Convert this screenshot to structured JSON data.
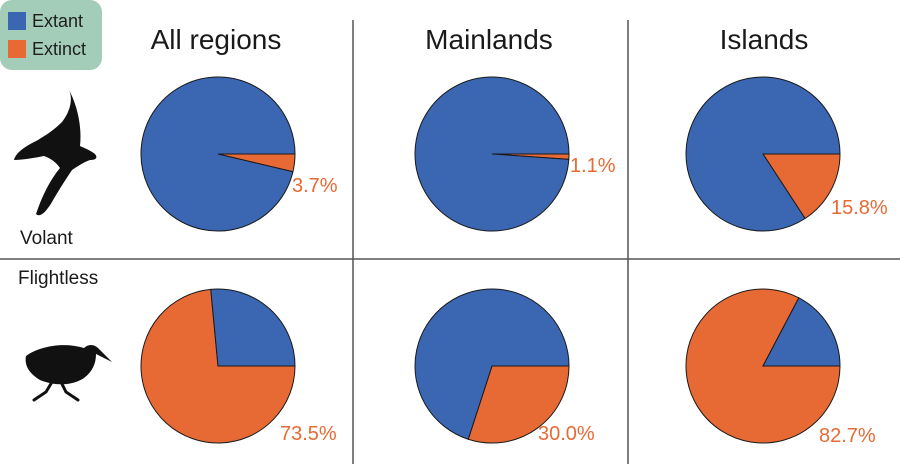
{
  "chart_data": {
    "type": "pie",
    "legend": [
      {
        "label": "Extant",
        "color": "#3a66b2"
      },
      {
        "label": "Extinct",
        "color": "#e76a35"
      }
    ],
    "column_titles": [
      "All regions",
      "Mainlands",
      "Islands"
    ],
    "row_labels": [
      "Volant",
      "Flightless"
    ],
    "pies": [
      {
        "row": "Volant",
        "column": "All regions",
        "extinct_percent": 3.7,
        "extant_percent": 96.3,
        "label": "3.7%"
      },
      {
        "row": "Volant",
        "column": "Mainlands",
        "extinct_percent": 1.1,
        "extant_percent": 98.9,
        "label": "1.1%"
      },
      {
        "row": "Volant",
        "column": "Islands",
        "extinct_percent": 15.8,
        "extant_percent": 84.2,
        "label": "15.8%"
      },
      {
        "row": "Flightless",
        "column": "All regions",
        "extinct_percent": 73.5,
        "extant_percent": 26.5,
        "label": "73.5%"
      },
      {
        "row": "Flightless",
        "column": "Mainlands",
        "extinct_percent": 30.0,
        "extant_percent": 70.0,
        "label": "30.0%"
      },
      {
        "row": "Flightless",
        "column": "Islands",
        "extinct_percent": 82.7,
        "extant_percent": 17.3,
        "label": "82.7%"
      }
    ]
  },
  "icons": [
    "flying-bird-silhouette-icon",
    "walking-rail-silhouette-icon"
  ],
  "colors": {
    "extant": "#3a66b2",
    "extinct": "#e76a35",
    "legend_bg": "#a3cdb8",
    "divider": "#555555"
  }
}
